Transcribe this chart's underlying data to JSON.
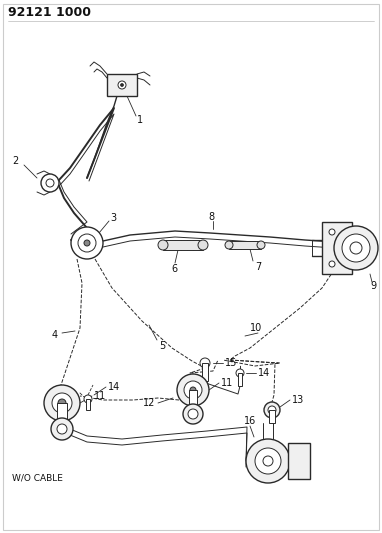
{
  "title": "92121 1000",
  "subtitle": "W/O CABLE",
  "bg_color": "#ffffff",
  "lc": "#2a2a2a",
  "tc": "#111111",
  "figsize": [
    3.82,
    5.33
  ],
  "dpi": 100,
  "border_color": "#cccccc"
}
